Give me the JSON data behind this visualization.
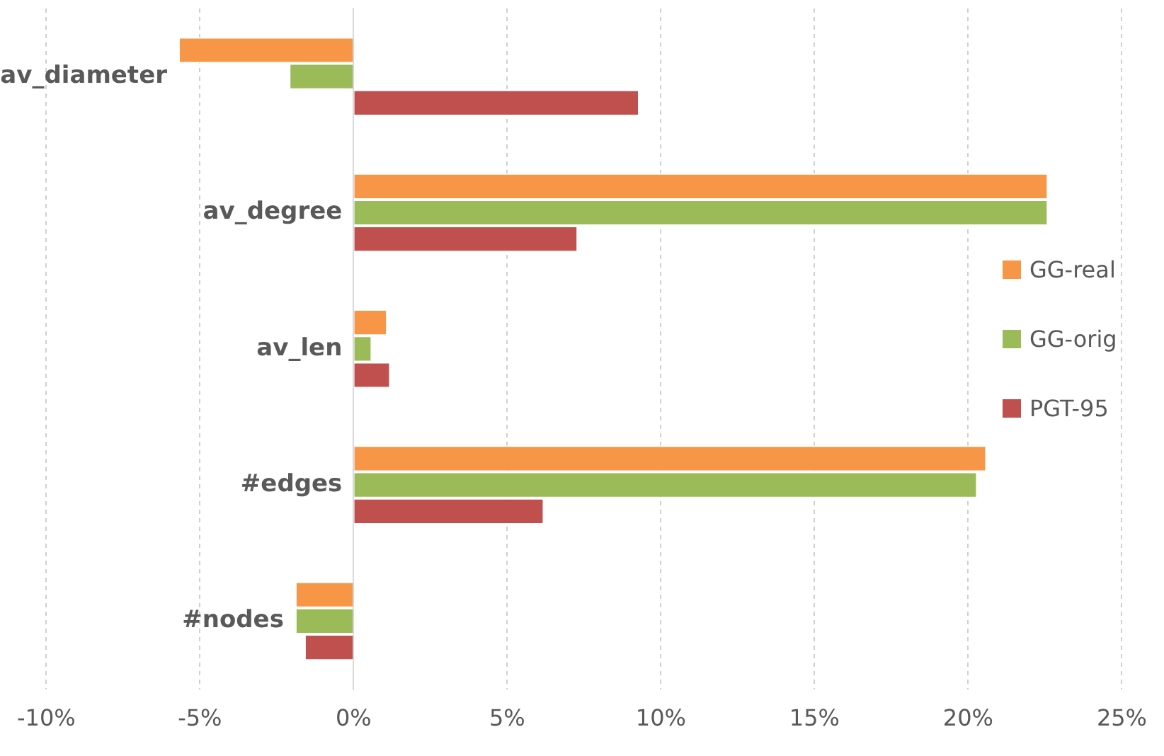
{
  "chart_data": {
    "type": "bar",
    "orientation": "horizontal",
    "categories": [
      "av_diameter",
      "av_degree",
      "av_len",
      "#edges",
      "#nodes"
    ],
    "series": [
      {
        "name": "GG-real",
        "color": "#f79646",
        "values": [
          -5.7,
          22.6,
          1.1,
          20.6,
          -1.9
        ]
      },
      {
        "name": "GG-orig",
        "color": "#9bbb59",
        "values": [
          -2.1,
          22.6,
          0.6,
          20.3,
          -1.9
        ]
      },
      {
        "name": "PGT-95",
        "color": "#c0504d",
        "values": [
          9.3,
          7.3,
          1.2,
          6.2,
          -1.6
        ]
      }
    ],
    "xlim": [
      -10,
      25
    ],
    "xticks": [
      {
        "value": -10,
        "label": "-10%"
      },
      {
        "value": -5,
        "label": "-5%"
      },
      {
        "value": 0,
        "label": "0%"
      },
      {
        "value": 5,
        "label": "5%"
      },
      {
        "value": 10,
        "label": "10%"
      },
      {
        "value": 15,
        "label": "15%"
      },
      {
        "value": 20,
        "label": "20%"
      },
      {
        "value": 25,
        "label": "25%"
      }
    ],
    "grid": "x",
    "legend": "right"
  }
}
